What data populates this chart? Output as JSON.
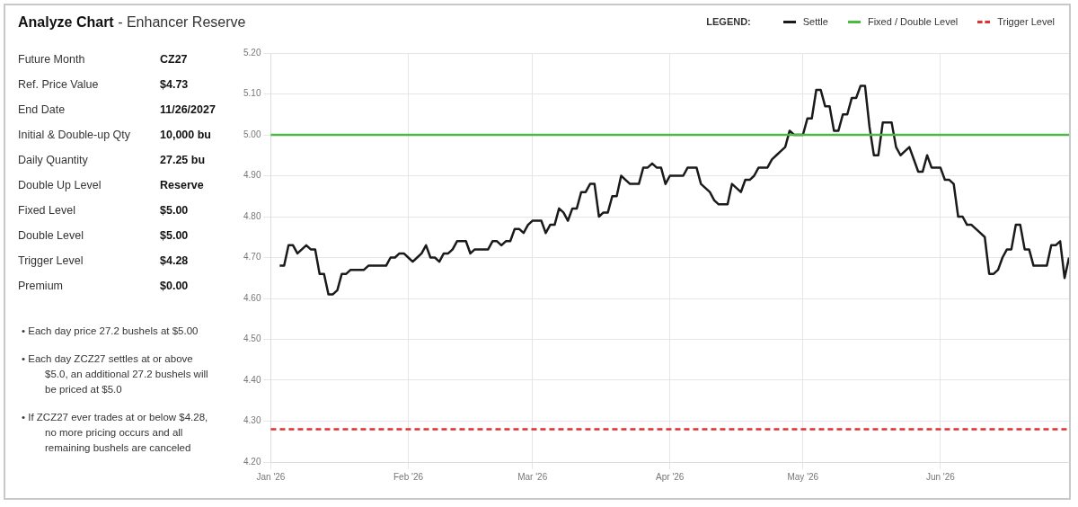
{
  "chart_data": [
    {
      "type": "other",
      "title": "Analyze Chart",
      "subtitle": "- Enhancer Reserve",
      "annotations": [
        "Future Month",
        "CZ27",
        "Ref. Price Value",
        "$4.73",
        "End Date",
        "11/26/2027",
        "Initial & Double-up Qty",
        "10,000 bu",
        "Daily Quantity",
        "27.25 bu",
        "Double Up Level",
        "Reserve",
        "Fixed Level",
        "$5.00",
        "Double Level",
        "$5.00",
        "Trigger Level",
        "$4.28",
        "Premium",
        "$0.00",
        "• Each day price 27.2 bushels at $5.00",
        "• Each day ZCZ27 settles at or above $5.0, an additional 27.2 bushels will be priced at $5.0",
        "• If ZCZ27 ever trades at or below $4.28, no more pricing occurs and all remaining bushels are canceled"
      ]
    },
    {
      "type": "line",
      "legend_title": "LEGEND:",
      "legend": "top right",
      "grid": true,
      "marker": "none",
      "line_style": "solid",
      "x": [
        "2026-01-03",
        "2026-01-04",
        "2026-01-05",
        "2026-01-06",
        "2026-01-07",
        "2026-01-08",
        "2026-01-09",
        "2026-01-10",
        "2026-01-11",
        "2026-01-12",
        "2026-01-13",
        "2026-01-14",
        "2026-01-15",
        "2026-01-16",
        "2026-01-17",
        "2026-01-18",
        "2026-01-19",
        "2026-01-22",
        "2026-01-23",
        "2026-01-27",
        "2026-01-28",
        "2026-01-29",
        "2026-01-30",
        "2026-01-31",
        "2026-02-01",
        "2026-02-02",
        "2026-02-03",
        "2026-02-04",
        "2026-02-05",
        "2026-02-06",
        "2026-02-07",
        "2026-02-08",
        "2026-02-09",
        "2026-02-10",
        "2026-02-11",
        "2026-02-12",
        "2026-02-14",
        "2026-02-15",
        "2026-02-16",
        "2026-02-17",
        "2026-02-19",
        "2026-02-20",
        "2026-02-21",
        "2026-02-22",
        "2026-02-23",
        "2026-02-24",
        "2026-02-25",
        "2026-02-26",
        "2026-02-27",
        "2026-02-28",
        "2026-03-01",
        "2026-03-03",
        "2026-03-04",
        "2026-03-05",
        "2026-03-06",
        "2026-03-07",
        "2026-03-08",
        "2026-03-09",
        "2026-03-10",
        "2026-03-11",
        "2026-03-12",
        "2026-03-13",
        "2026-03-14",
        "2026-03-15",
        "2026-03-16",
        "2026-03-17",
        "2026-03-18",
        "2026-03-19",
        "2026-03-20",
        "2026-03-21",
        "2026-03-22",
        "2026-03-23",
        "2026-03-25",
        "2026-03-26",
        "2026-03-27",
        "2026-03-28",
        "2026-03-29",
        "2026-03-30",
        "2026-03-31",
        "2026-04-01",
        "2026-04-04",
        "2026-04-05",
        "2026-04-07",
        "2026-04-08",
        "2026-04-09",
        "2026-04-10",
        "2026-04-11",
        "2026-04-12",
        "2026-04-14",
        "2026-04-15",
        "2026-04-16",
        "2026-04-17",
        "2026-04-18",
        "2026-04-19",
        "2026-04-20",
        "2026-04-21",
        "2026-04-23",
        "2026-04-24",
        "2026-04-25",
        "2026-04-26",
        "2026-04-27",
        "2026-04-28",
        "2026-04-29",
        "2026-05-01",
        "2026-05-02",
        "2026-05-03",
        "2026-05-04",
        "2026-05-05",
        "2026-05-06",
        "2026-05-07",
        "2026-05-08",
        "2026-05-09",
        "2026-05-10",
        "2026-05-11",
        "2026-05-12",
        "2026-05-13",
        "2026-05-14",
        "2026-05-15",
        "2026-05-16",
        "2026-05-17",
        "2026-05-18",
        "2026-05-19",
        "2026-05-21",
        "2026-05-22",
        "2026-05-23",
        "2026-05-24",
        "2026-05-25",
        "2026-05-26",
        "2026-05-27",
        "2026-05-28",
        "2026-05-29",
        "2026-05-30",
        "2026-06-01",
        "2026-06-02",
        "2026-06-03",
        "2026-06-04",
        "2026-06-05",
        "2026-06-06",
        "2026-06-07",
        "2026-06-08",
        "2026-06-09",
        "2026-06-10",
        "2026-06-11",
        "2026-06-12",
        "2026-06-13",
        "2026-06-14",
        "2026-06-15",
        "2026-06-16",
        "2026-06-17",
        "2026-06-18",
        "2026-06-19",
        "2026-06-20",
        "2026-06-21",
        "2026-06-22",
        "2026-06-25",
        "2026-06-26",
        "2026-06-27",
        "2026-06-28",
        "2026-06-29",
        "2026-06-30"
      ],
      "series": [
        {
          "name": "Settle",
          "color": "#1a1a1a",
          "values": [
            4.68,
            4.68,
            4.73,
            4.73,
            4.71,
            4.72,
            4.73,
            4.72,
            4.72,
            4.66,
            4.66,
            4.61,
            4.61,
            4.62,
            4.66,
            4.66,
            4.67,
            4.67,
            4.68,
            4.68,
            4.7,
            4.7,
            4.71,
            4.71,
            4.7,
            4.69,
            4.7,
            4.71,
            4.73,
            4.7,
            4.7,
            4.69,
            4.71,
            4.71,
            4.72,
            4.74,
            4.74,
            4.71,
            4.72,
            4.72,
            4.72,
            4.74,
            4.74,
            4.73,
            4.74,
            4.74,
            4.77,
            4.77,
            4.76,
            4.78,
            4.79,
            4.79,
            4.76,
            4.78,
            4.78,
            4.82,
            4.81,
            4.79,
            4.82,
            4.82,
            4.86,
            4.86,
            4.88,
            4.88,
            4.8,
            4.81,
            4.81,
            4.85,
            4.85,
            4.9,
            4.89,
            4.88,
            4.88,
            4.92,
            4.92,
            4.93,
            4.92,
            4.92,
            4.88,
            4.9,
            4.9,
            4.92,
            4.92,
            4.88,
            4.87,
            4.86,
            4.84,
            4.83,
            4.83,
            4.88,
            4.87,
            4.86,
            4.89,
            4.89,
            4.9,
            4.92,
            4.92,
            4.94,
            4.95,
            4.96,
            4.97,
            5.01,
            5.0,
            5.0,
            5.04,
            5.04,
            5.11,
            5.11,
            5.07,
            5.07,
            5.01,
            5.01,
            5.05,
            5.05,
            5.09,
            5.09,
            5.12,
            5.12,
            5.02,
            4.95,
            4.95,
            5.03,
            5.03,
            4.97,
            4.95,
            4.96,
            4.97,
            4.94,
            4.91,
            4.91,
            4.95,
            4.92,
            4.92,
            4.89,
            4.89,
            4.88,
            4.8,
            4.8,
            4.78,
            4.78,
            4.77,
            4.76,
            4.75,
            4.66,
            4.66,
            4.67,
            4.7,
            4.72,
            4.72,
            4.78,
            4.78,
            4.72,
            4.72,
            4.68,
            4.68,
            4.73,
            4.73,
            4.74,
            4.65,
            4.7
          ]
        }
      ],
      "ref_lines": [
        {
          "axis": "y",
          "value": 5.0,
          "label": "Fixed / Double Level",
          "color": "#4cb944",
          "line_style": "solid"
        },
        {
          "axis": "y",
          "value": 4.28,
          "label": "Trigger Level",
          "color": "#e03030",
          "line_style": "dashed"
        }
      ],
      "xlim": [
        "2026-01-01",
        "2026-06-30"
      ],
      "xticks": [
        {
          "value": "2026-01-01",
          "label": "Jan '26"
        },
        {
          "value": "2026-02-01",
          "label": "Feb '26"
        },
        {
          "value": "2026-03-01",
          "label": "Mar '26"
        },
        {
          "value": "2026-04-01",
          "label": "Apr '26"
        },
        {
          "value": "2026-05-01",
          "label": "May '26"
        },
        {
          "value": "2026-06-01",
          "label": "Jun '26"
        }
      ],
      "ylim": [
        4.2,
        5.2
      ],
      "yticks": [
        {
          "value": 4.2,
          "label": "4.20"
        },
        {
          "value": 4.3,
          "label": "4.30"
        },
        {
          "value": 4.4,
          "label": "4.40"
        },
        {
          "value": 4.5,
          "label": "4.50"
        },
        {
          "value": 4.6,
          "label": "4.60"
        },
        {
          "value": 4.7,
          "label": "4.70"
        },
        {
          "value": 4.8,
          "label": "4.80"
        },
        {
          "value": 4.9,
          "label": "4.90"
        },
        {
          "value": 5.0,
          "label": "5.00"
        },
        {
          "value": 5.1,
          "label": "5.10"
        },
        {
          "value": 5.2,
          "label": "5.20"
        }
      ]
    }
  ]
}
